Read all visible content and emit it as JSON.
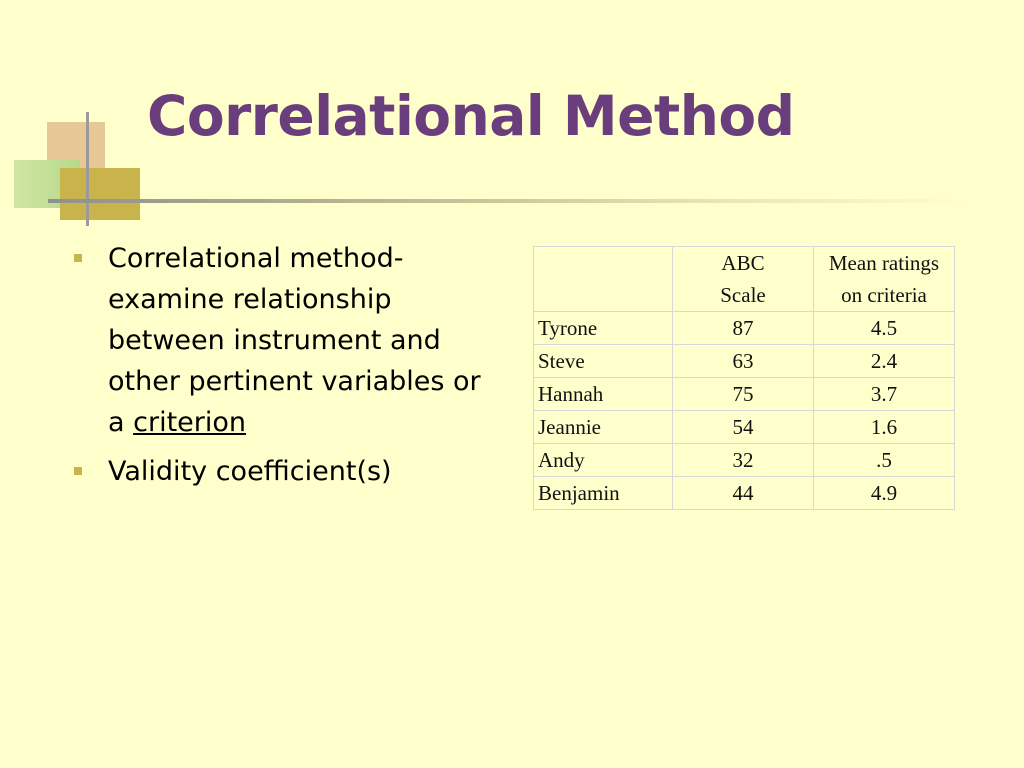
{
  "slide": {
    "title": "Correlational Method",
    "bullets": [
      {
        "text": "Correlational method- examine relationship between instrument and other pertinent variables or a ",
        "link": "criterion"
      },
      {
        "text": "Validity coefficient(s)",
        "link": ""
      }
    ],
    "table": {
      "headers": [
        "",
        "ABC Scale",
        "Mean ratings on criteria"
      ],
      "rows": [
        [
          "Tyrone",
          "87",
          "4.5"
        ],
        [
          "Steve",
          "63",
          "2.4"
        ],
        [
          "Hannah",
          "75",
          "3.7"
        ],
        [
          "Jeannie",
          "54",
          "1.6"
        ],
        [
          "Andy",
          "32",
          ".5"
        ],
        [
          "Benjamin",
          "44",
          "4.9"
        ]
      ]
    },
    "colors": {
      "background": "#ffffcc",
      "title": "#6a3e7c",
      "bullet": "#c8b44a"
    }
  }
}
